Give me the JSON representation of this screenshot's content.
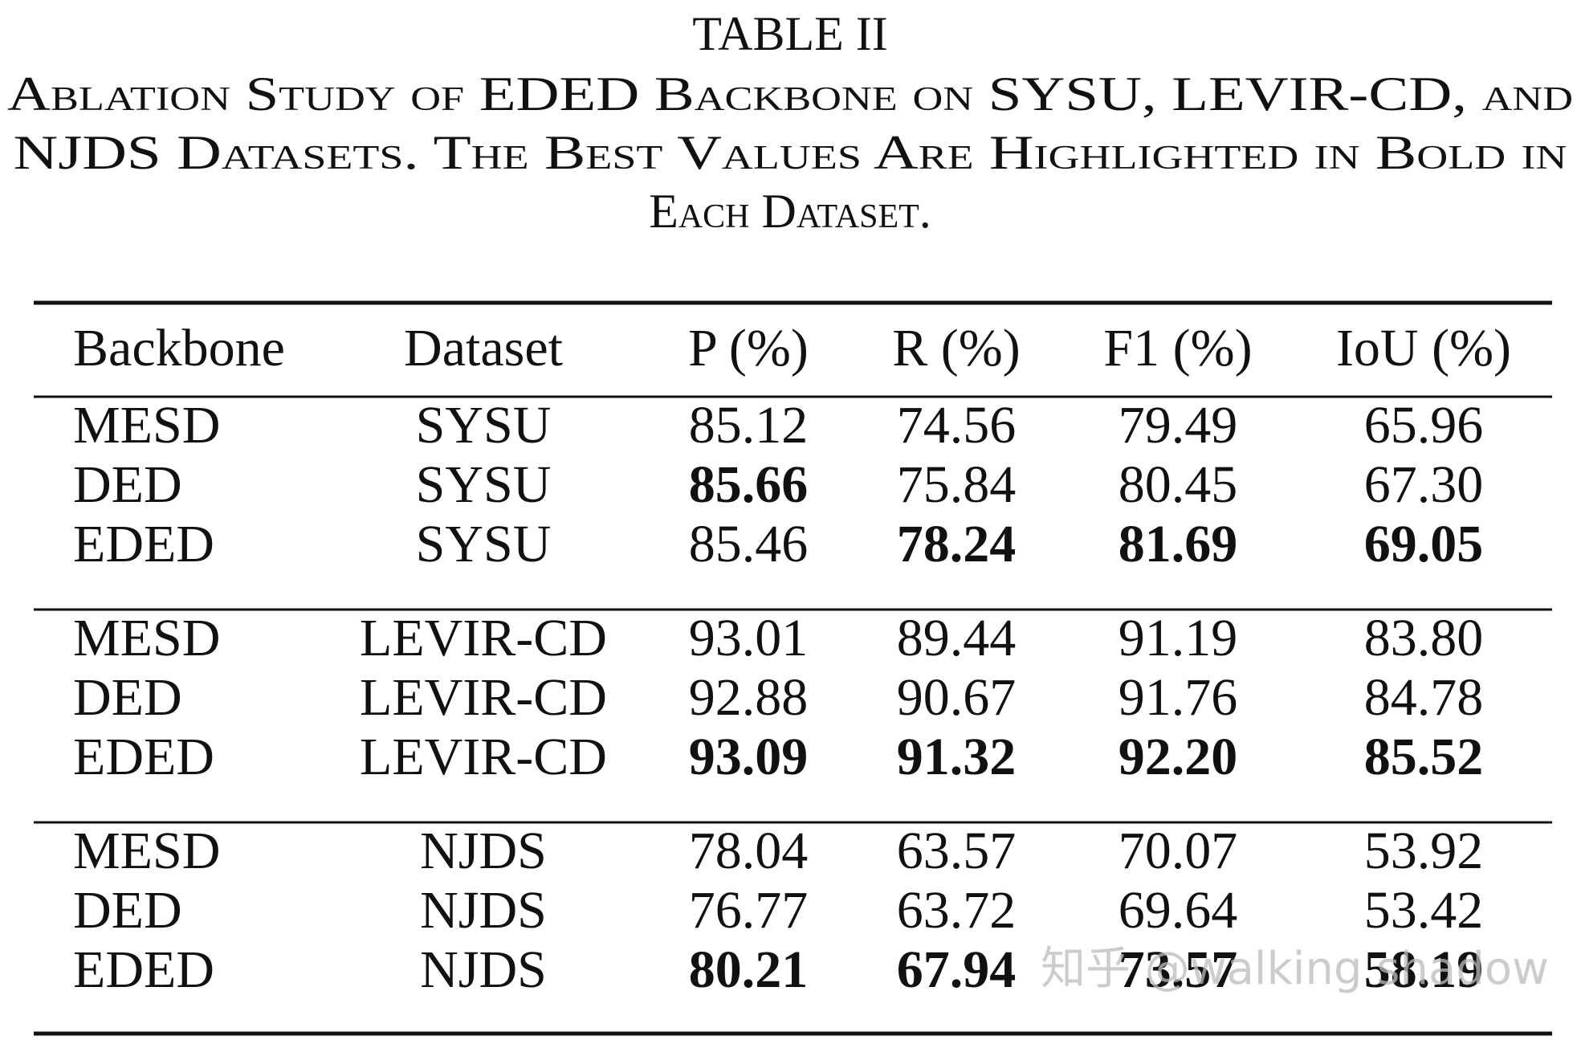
{
  "table_label": "TABLE II",
  "caption_lines": [
    "Ablation Study of EDED Backbone on SYSU, LEVIR-CD, and",
    "NJDS Datasets. The Best Values Are Highlighted in Bold in",
    "Each Dataset."
  ],
  "table": {
    "header": [
      "Backbone",
      "Dataset",
      "P (%)",
      "R (%)",
      "F1 (%)",
      "IoU (%)"
    ],
    "groups": [
      [
        {
          "cells": [
            "MESD",
            "SYSU",
            "85.12",
            "74.56",
            "79.49",
            "65.96"
          ],
          "bold": []
        },
        {
          "cells": [
            "DED",
            "SYSU",
            "85.66",
            "75.84",
            "80.45",
            "67.30"
          ],
          "bold": [
            2
          ]
        },
        {
          "cells": [
            "EDED",
            "SYSU",
            "85.46",
            "78.24",
            "81.69",
            "69.05"
          ],
          "bold": [
            3,
            4,
            5
          ]
        }
      ],
      [
        {
          "cells": [
            "MESD",
            "LEVIR-CD",
            "93.01",
            "89.44",
            "91.19",
            "83.80"
          ],
          "bold": []
        },
        {
          "cells": [
            "DED",
            "LEVIR-CD",
            "92.88",
            "90.67",
            "91.76",
            "84.78"
          ],
          "bold": []
        },
        {
          "cells": [
            "EDED",
            "LEVIR-CD",
            "93.09",
            "91.32",
            "92.20",
            "85.52"
          ],
          "bold": [
            2,
            3,
            4,
            5
          ]
        }
      ],
      [
        {
          "cells": [
            "MESD",
            "NJDS",
            "78.04",
            "63.57",
            "70.07",
            "53.92"
          ],
          "bold": []
        },
        {
          "cells": [
            "DED",
            "NJDS",
            "76.77",
            "63.72",
            "69.64",
            "53.42"
          ],
          "bold": []
        },
        {
          "cells": [
            "EDED",
            "NJDS",
            "80.21",
            "67.94",
            "73.57",
            "58.19"
          ],
          "bold": [
            2,
            3,
            4,
            5
          ]
        }
      ]
    ]
  },
  "watermark": "知乎 @walking shadow"
}
